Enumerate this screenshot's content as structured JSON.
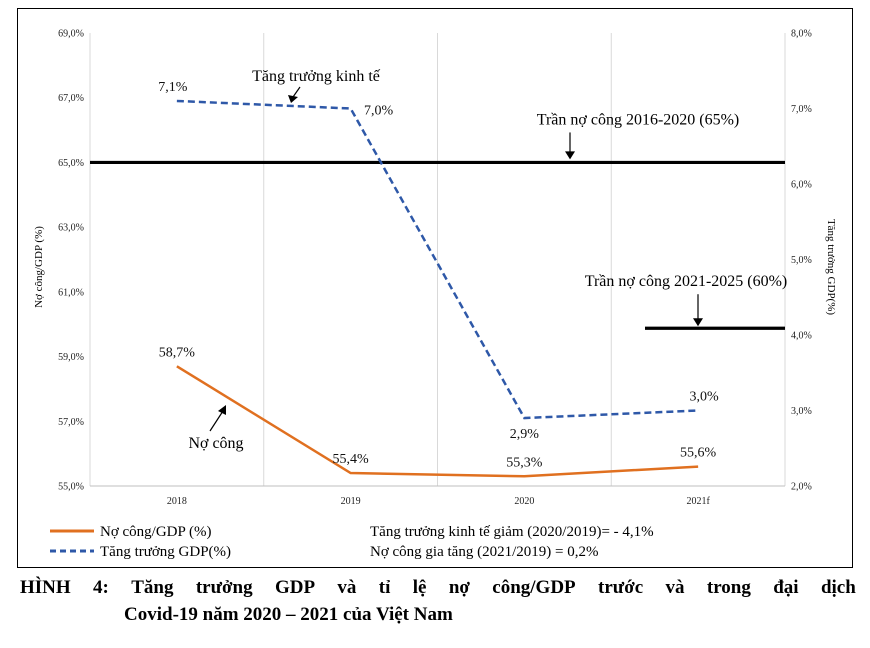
{
  "chart_data": {
    "type": "line",
    "categories": [
      "2018",
      "2019",
      "2020",
      "2021f"
    ],
    "series": [
      {
        "name": "Nợ công/GDP (%)",
        "axis": "left",
        "color": "#e07020",
        "dash": "solid",
        "values": [
          58.7,
          55.4,
          55.3,
          55.6
        ],
        "labels": [
          "58,7%",
          "55,4%",
          "55,3%",
          "55,6%"
        ]
      },
      {
        "name": "Tăng trưởng GDP(%)",
        "axis": "right",
        "color": "#2e58a8",
        "dash": "dashed",
        "values": [
          7.1,
          7.0,
          2.9,
          3.0
        ],
        "labels": [
          "7,1%",
          "7,0%",
          "2,9%",
          "3,0%"
        ]
      }
    ],
    "ylabel": "Nợ công/GDP (%)",
    "y2label": "Tăng trưởng GDP(%)",
    "ylim": [
      55,
      69
    ],
    "y2lim": [
      2,
      8
    ],
    "yticks": [
      "55,0%",
      "57,0%",
      "59,0%",
      "61,0%",
      "63,0%",
      "65,0%",
      "67,0%",
      "69,0%"
    ],
    "y2ticks": [
      "2,0%",
      "3,0%",
      "4,0%",
      "5,0%",
      "6,0%",
      "7,0%",
      "8,0%"
    ],
    "grid": "vertical",
    "legend": "bottom-left",
    "reference_lines": [
      {
        "label": "Trần nợ công 2016-2020 (65%)",
        "value": 65,
        "x_from": "2018",
        "x_to": "2021f"
      },
      {
        "label": "Trần nợ công 2021-2025 (60%)",
        "value": 60,
        "x_from": "2021f",
        "x_to": "2021f"
      }
    ],
    "annotations": {
      "growth": "Tăng trưởng kinh tế",
      "debt": "Nợ công"
    },
    "notes": [
      "Tăng trưởng kinh tế giảm (2020/2019)= - 4,1%",
      "Nợ công gia tăng (2021/2019) = 0,2%"
    ]
  },
  "caption": {
    "line1": [
      "HÌNH",
      "4:",
      "Tăng",
      "trưởng",
      "GDP",
      "và",
      "tỉ",
      "lệ",
      "nợ",
      "công/GDP",
      "trước",
      "và",
      "trong",
      "đại",
      "dịch"
    ],
    "line2": "Covid-19 năm 2020 – 2021 của Việt Nam"
  }
}
